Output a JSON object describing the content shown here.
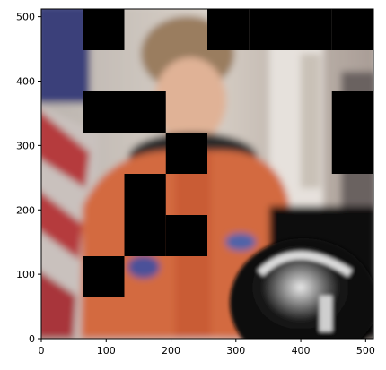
{
  "chart_data": {
    "type": "heatmap",
    "title": "",
    "xlabel": "",
    "ylabel": "",
    "xlim": [
      0,
      512
    ],
    "ylim": [
      0,
      512
    ],
    "origin": "lower",
    "grid": false,
    "xticks": [
      0,
      100,
      200,
      300,
      400,
      500
    ],
    "yticks": [
      0,
      100,
      200,
      300,
      400,
      500
    ],
    "image_content": "blurred photograph of an astronaut in an orange spacesuit in front of an American flag, with a black helmet at the lower right",
    "mask_block_size": 64,
    "masked_blocks": [
      {
        "col": 1,
        "row": 7
      },
      {
        "col": 4,
        "row": 7
      },
      {
        "col": 5,
        "row": 7
      },
      {
        "col": 6,
        "row": 7
      },
      {
        "col": 7,
        "row": 7
      },
      {
        "col": 1,
        "row": 5
      },
      {
        "col": 2,
        "row": 5
      },
      {
        "col": 7,
        "row": 5
      },
      {
        "col": 7,
        "row": 4
      },
      {
        "col": 3,
        "row": 4
      },
      {
        "col": 2,
        "row": 3
      },
      {
        "col": 2,
        "row": 2
      },
      {
        "col": 3,
        "row": 2
      },
      {
        "col": 1,
        "row": 1
      }
    ],
    "colors": {
      "mask": "#000000",
      "spacesuit": "#d66a3f",
      "flag_red": "#b53a3d",
      "flag_blue": "#2e3f7c",
      "background": "#cfc6bd"
    }
  }
}
